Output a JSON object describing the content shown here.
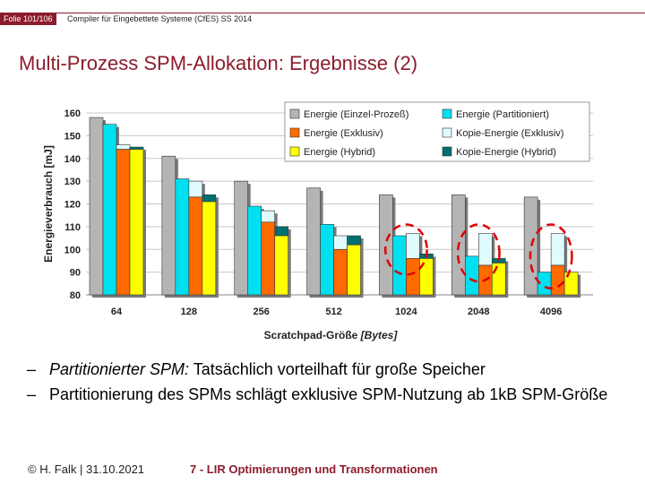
{
  "header": {
    "slide_number": "Folie 101/106",
    "course": "Compiler für Eingebettete Systeme (CfES) SS 2014"
  },
  "title": "Multi-Prozess SPM-Allokation: Ergebnisse (2)",
  "colors": {
    "accent": "#8c1c2c",
    "einzel": "#b4b4b4",
    "partitioniert": "#00e0f0",
    "exklusiv": "#ff6a00",
    "kopie_exklusiv": "#e0fbff",
    "hybrid": "#ffff00",
    "kopie_hybrid": "#007070",
    "highlight": "#e00000"
  },
  "chart_data": {
    "type": "bar",
    "stacked_segments": true,
    "categories": [
      "64",
      "128",
      "256",
      "512",
      "1024",
      "2048",
      "4096"
    ],
    "ylim": [
      80,
      160
    ],
    "yticks": [
      "80",
      "90",
      "100",
      "110",
      "120",
      "130",
      "140",
      "150",
      "160"
    ],
    "ylabel": "Energieverbrauch [mJ]",
    "xlabel": "Scratchpad-Größe",
    "xlabel_unit": "[Bytes]",
    "series": [
      {
        "name": "Energie (Einzel-Prozeß)",
        "values": [
          158,
          141,
          130,
          127,
          124,
          124,
          123
        ]
      },
      {
        "name": "Energie (Partitioniert)",
        "values": [
          155,
          131,
          119,
          111,
          106,
          97,
          90
        ]
      },
      {
        "name": "Kopie-Energie (Exklusiv)",
        "values": [
          2,
          7,
          5,
          6,
          11,
          14,
          14
        ]
      },
      {
        "name": "Energie (Exklusiv)",
        "values": [
          144,
          123,
          112,
          100,
          96,
          93,
          93
        ]
      },
      {
        "name": "Kopie-Energie (Hybrid)",
        "values": [
          1,
          3,
          4,
          4,
          2,
          2,
          0
        ]
      },
      {
        "name": "Energie (Hybrid)",
        "values": [
          144,
          121,
          106,
          102,
          96,
          94,
          90
        ]
      }
    ],
    "legend": [
      {
        "label": "Energie (Einzel-Prozeß)",
        "color": "#b4b4b4"
      },
      {
        "label": "Energie (Partitioniert)",
        "color": "#00e0f0"
      },
      {
        "label": "Energie (Exklusiv)",
        "color": "#ff6a00"
      },
      {
        "label": "Kopie-Energie (Exklusiv)",
        "color": "#e0fbff"
      },
      {
        "label": "Energie (Hybrid)",
        "color": "#ffff00"
      },
      {
        "label": "Kopie-Energie (Hybrid)",
        "color": "#007070"
      }
    ],
    "legend_position": "top-right",
    "highlighted_categories": [
      "1024",
      "2048",
      "4096"
    ]
  },
  "bullets": [
    {
      "dash": "–",
      "italic": "Partitionierter SPM:",
      "text": " Tatsächlich vorteilhaft für große Speicher"
    },
    {
      "dash": "–",
      "italic": "",
      "text": "Partitionierung des SPMs schlägt exklusive SPM-Nutzung ab 1kB SPM-Größe"
    }
  ],
  "footer": {
    "author": "© H. Falk | 31.10.2021",
    "chapter": "7 - LIR Optimierungen und Transformationen"
  }
}
